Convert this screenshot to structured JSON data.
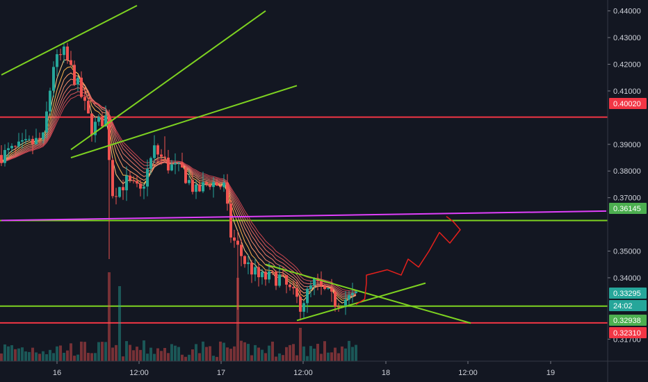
{
  "chart_data": {
    "type": "candlestick",
    "title": "",
    "xlabel": "",
    "ylabel": "",
    "ylim": [
      0.315,
      0.442
    ],
    "grid": false,
    "x_ticks": [
      "16",
      "12:00",
      "17",
      "12:00",
      "18",
      "12:00",
      "19"
    ],
    "y_ticks": [
      "0.44000",
      "0.43000",
      "0.42000",
      "0.41000",
      "0.39000",
      "0.38000",
      "0.37000",
      "0.35000",
      "0.34000",
      "0.31700"
    ],
    "price_tags": [
      {
        "label": "0.40020",
        "value": 0.4002,
        "color": "#f23645"
      },
      {
        "label": "0.36145",
        "value": 0.36145,
        "color": "#4caf50"
      },
      {
        "label": "0.33295",
        "value": 0.33295,
        "color": "#26a69a"
      },
      {
        "label": "24:02",
        "value": 0.3296,
        "color": "#26a69a"
      },
      {
        "label": "0.32938",
        "value": 0.32938,
        "color": "#4caf50"
      },
      {
        "label": "0.32310",
        "value": 0.3231,
        "color": "#f23645"
      }
    ],
    "horizontal_levels": [
      {
        "value": 0.4002,
        "color": "#f23645"
      },
      {
        "value": 0.36145,
        "color": "#7ed321"
      },
      {
        "value": 0.32938,
        "color": "#7ed321"
      },
      {
        "value": 0.3231,
        "color": "#f23645"
      }
    ],
    "colors": {
      "up": "#26a69a",
      "down": "#ef5350",
      "background": "#131722",
      "trendline": "#7ed321",
      "magenta_line": "#e040fb",
      "projection": "#e5201c"
    }
  }
}
